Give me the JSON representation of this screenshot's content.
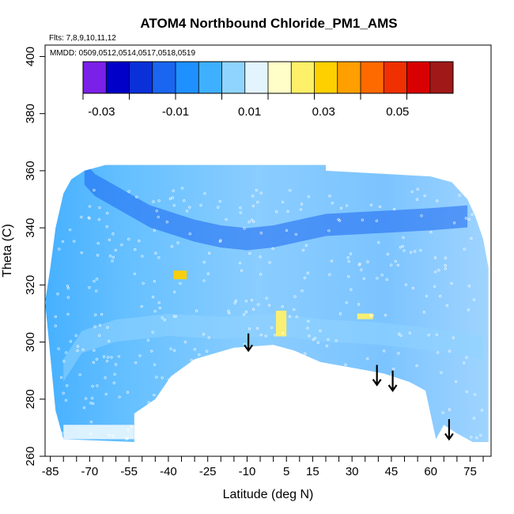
{
  "chart_data": {
    "type": "heatmap",
    "title": "ATOM4 Northbound Chloride_PM1_AMS",
    "annotations": [
      "Flts: 7,8,9,10,11,12",
      "MMDD: 0509,0512,0514,0517,0518,0519"
    ],
    "xlabel": "Latitude (deg N)",
    "ylabel": "Theta (C)",
    "xlim": [
      -87,
      83
    ],
    "ylim": [
      260,
      404
    ],
    "x_ticks": [
      -85,
      -70,
      -55,
      -40,
      -25,
      -10,
      5,
      15,
      30,
      45,
      60,
      75
    ],
    "x_tick_labels": [
      "-85",
      "-70",
      "-55",
      "-40",
      "-25",
      "-10",
      "5",
      "15",
      "30",
      "45",
      "60",
      "75"
    ],
    "y_ticks": [
      260,
      280,
      300,
      320,
      340,
      360,
      380,
      400
    ],
    "y_tick_labels": [
      "260",
      "280",
      "300",
      "320",
      "340",
      "360",
      "380",
      "400"
    ],
    "colorbar": {
      "range": [
        -0.035,
        0.065
      ],
      "ticks": [
        -0.03,
        -0.01,
        0.01,
        0.03,
        0.05
      ],
      "tick_labels": [
        "-0.03",
        "-0.01",
        "0.01",
        "0.03",
        "0.05"
      ],
      "colors": [
        "#7b20e8",
        "#0000c8",
        "#0a30d8",
        "#1a66f0",
        "#1e90ff",
        "#3fb0ff",
        "#8fd4ff",
        "#e4f4ff",
        "#fffdc8",
        "#fff06a",
        "#ffd000",
        "#ffa000",
        "#ff6a00",
        "#f03000",
        "#d80000",
        "#a01818"
      ]
    },
    "field_upper_boundary": [
      [
        -87,
        314
      ],
      [
        -85,
        326
      ],
      [
        -83,
        340
      ],
      [
        -80,
        352
      ],
      [
        -77,
        357
      ],
      [
        -72,
        360
      ],
      [
        -64,
        362
      ],
      [
        20,
        362
      ],
      [
        20,
        360
      ],
      [
        40,
        359
      ],
      [
        60,
        358
      ],
      [
        68,
        356
      ],
      [
        74,
        350
      ],
      [
        77,
        344
      ],
      [
        80,
        336
      ],
      [
        82,
        326
      ]
    ],
    "field_lower_boundary": [
      [
        -83,
        276
      ],
      [
        -80,
        266
      ],
      [
        -53,
        265
      ],
      [
        -53,
        275
      ],
      [
        -45,
        280
      ],
      [
        -39,
        288
      ],
      [
        -30,
        294
      ],
      [
        -15,
        298
      ],
      [
        0,
        299
      ],
      [
        8,
        297
      ],
      [
        18,
        293
      ],
      [
        30,
        291
      ],
      [
        42,
        289
      ],
      [
        52,
        286
      ],
      [
        58,
        283
      ],
      [
        62,
        266
      ],
      [
        65,
        271
      ],
      [
        70,
        268
      ],
      [
        76,
        265
      ],
      [
        82,
        265
      ]
    ],
    "regions": [
      {
        "lon": [
          -72,
          -68,
          -47,
          -30,
          -20,
          -10,
          0,
          10,
          20,
          40,
          60,
          74
        ],
        "theta": [
          359,
          355,
          344,
          339,
          337,
          336,
          337,
          339,
          341,
          342,
          343,
          344
        ],
        "value": -0.012
      },
      {
        "lon": [
          -80,
          -73,
          -60,
          -40,
          -20,
          0,
          20,
          40,
          60,
          80
        ],
        "theta": [
          290,
          300,
          304,
          306,
          305,
          306,
          304,
          303,
          301,
          298
        ],
        "value": 0.003
      },
      {
        "lon": [
          -38,
          -33,
          -33,
          -38
        ],
        "theta": [
          325,
          325,
          322,
          322
        ],
        "value": 0.032
      },
      {
        "lon": [
          1,
          5,
          5,
          1
        ],
        "theta": [
          311,
          311,
          302,
          302
        ],
        "value": 0.025
      },
      {
        "lon": [
          32,
          38,
          38,
          32
        ],
        "theta": [
          310,
          310,
          308,
          308
        ],
        "value": 0.025
      },
      {
        "lon": [
          -80,
          -53,
          -53,
          -80
        ],
        "theta": [
          271,
          271,
          266,
          266
        ],
        "value": 0.012
      }
    ],
    "arrows": [
      {
        "lon": -9.5,
        "theta_top": 303,
        "theta_tip": 297
      },
      {
        "lon": 39.5,
        "theta_top": 292,
        "theta_tip": 285
      },
      {
        "lon": 45.5,
        "theta_top": 290,
        "theta_tip": 283
      },
      {
        "lon": 67.0,
        "theta_top": 273,
        "theta_tip": 266
      }
    ]
  }
}
